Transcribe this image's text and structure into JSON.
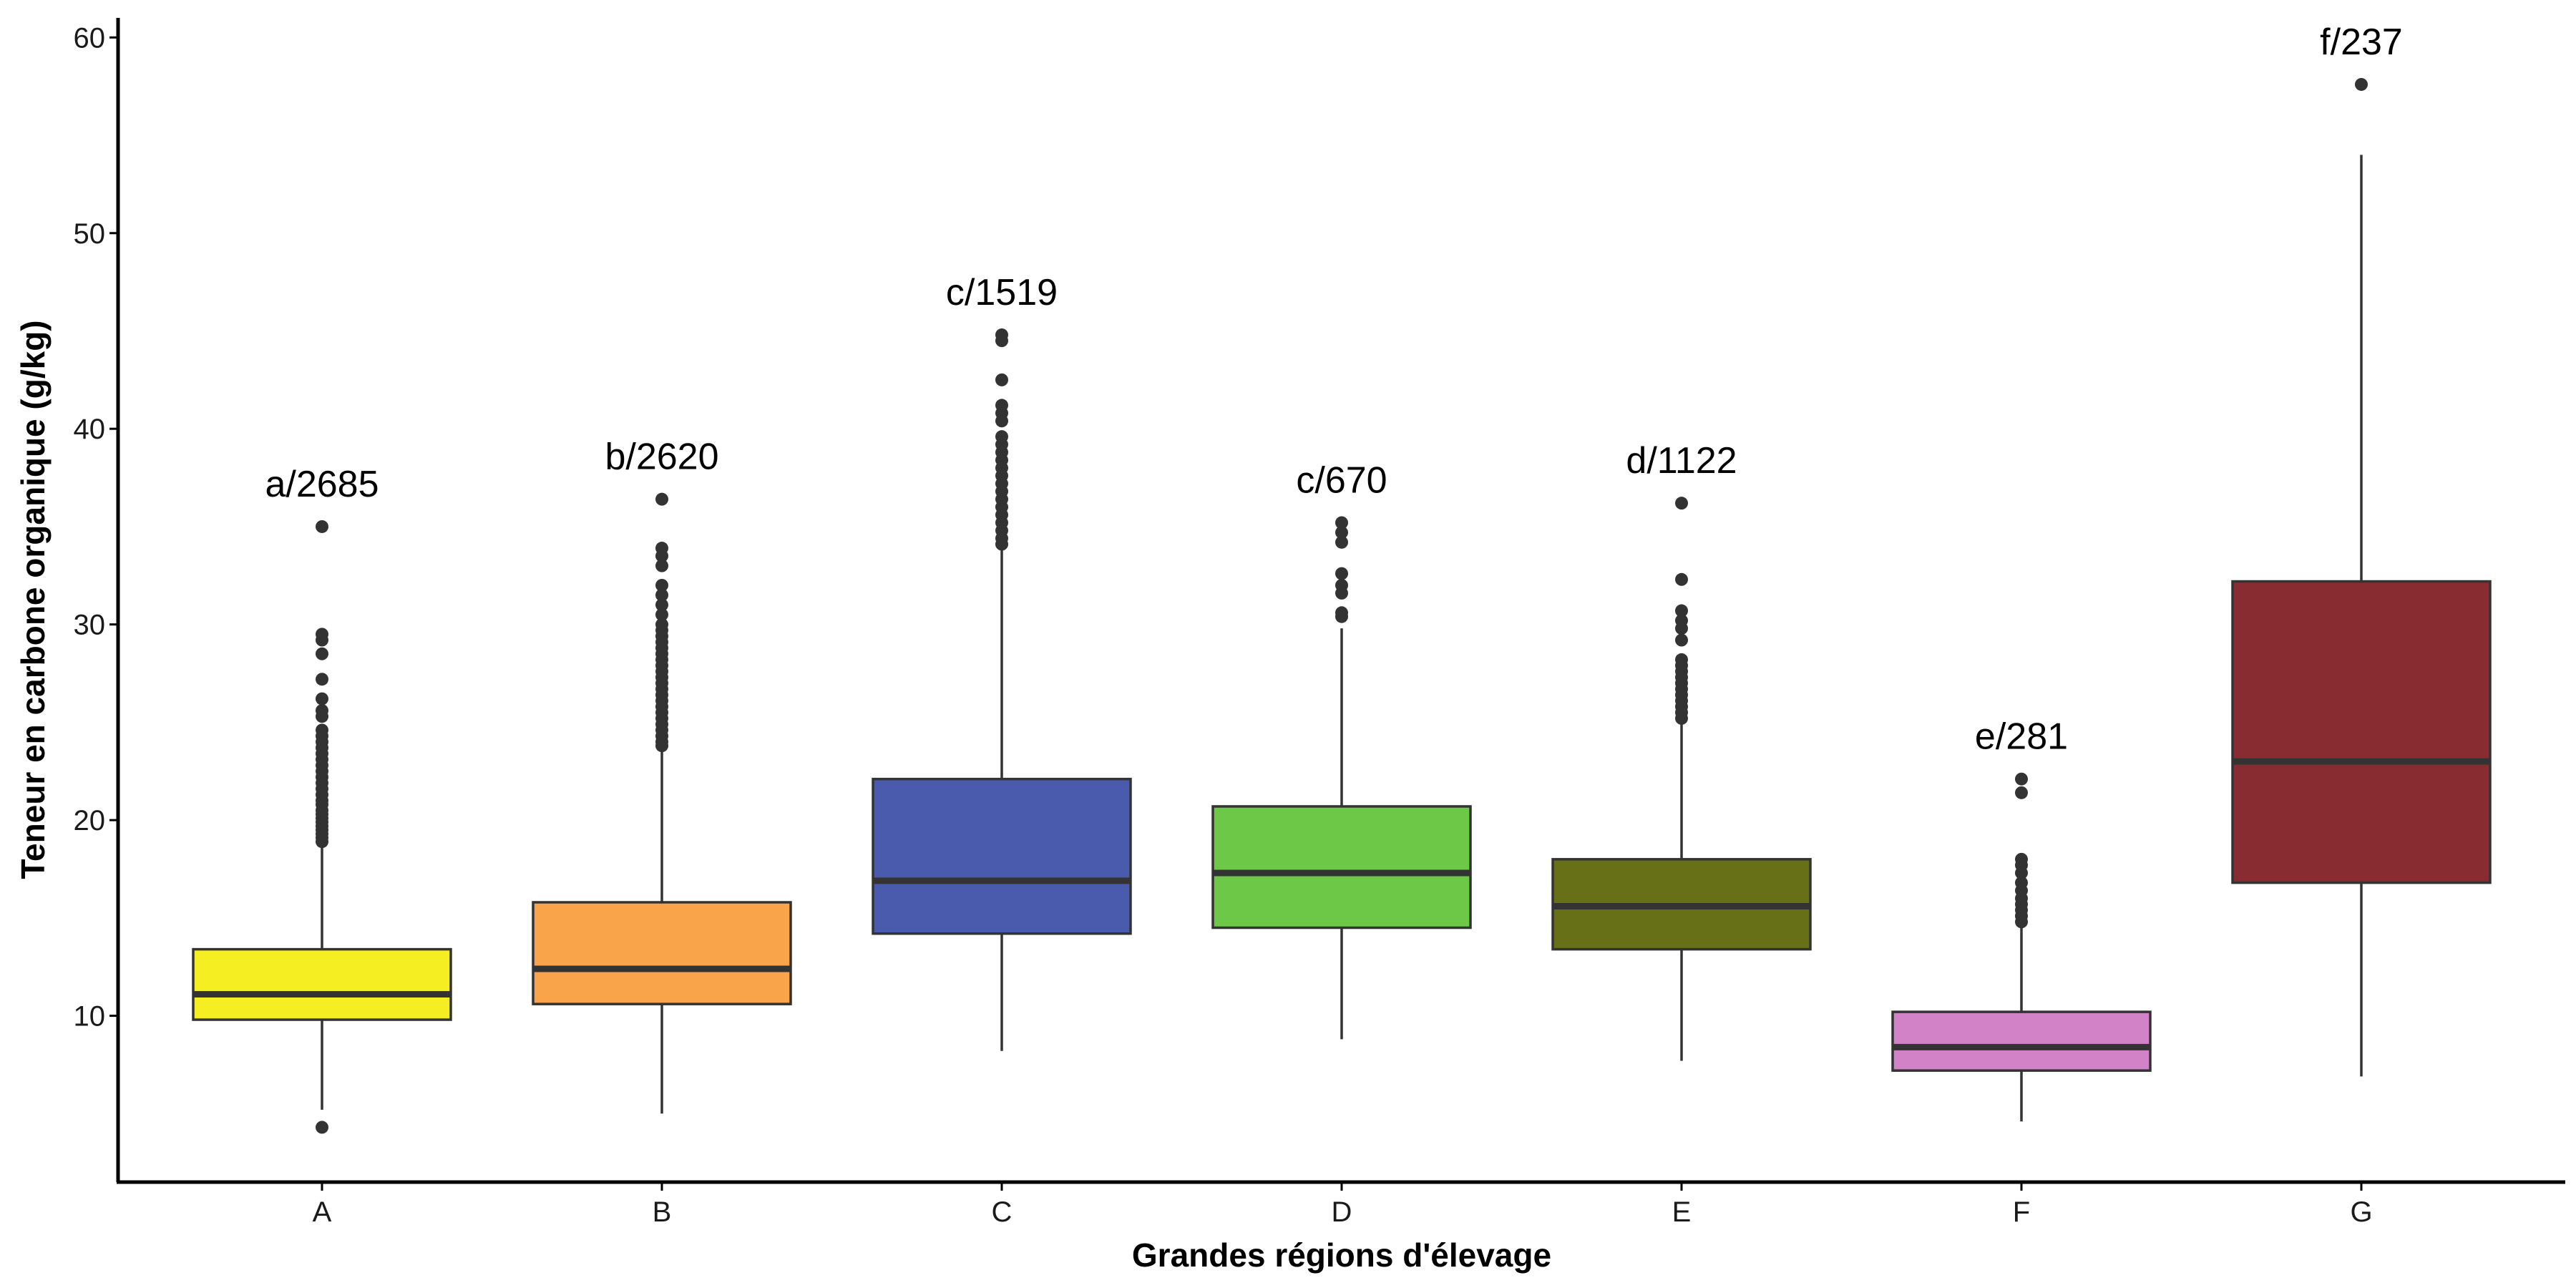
{
  "chart_data": {
    "type": "boxplot",
    "xlabel": "Grandes régions d'élevage",
    "ylabel": "Teneur en carbone organique (g/kg)",
    "ylim": [
      1.5,
      61
    ],
    "yticks": [
      10,
      20,
      30,
      40,
      50,
      60
    ],
    "categories": [
      "A",
      "B",
      "C",
      "D",
      "E",
      "F",
      "G"
    ],
    "boxes": [
      {
        "category": "A",
        "label": "a/2685",
        "color": "#F5EE23",
        "whisker_low": 5.2,
        "q1": 9.8,
        "median": 11.1,
        "q3": 13.4,
        "whisker_high": 18.8,
        "outliers": [
          4.3,
          18.9,
          19.1,
          19.3,
          19.5,
          19.7,
          19.9,
          20.1,
          20.3,
          20.5,
          20.8,
          21.0,
          21.3,
          21.6,
          21.9,
          22.2,
          22.5,
          22.8,
          23.1,
          23.4,
          23.7,
          24.0,
          24.3,
          24.6,
          25.3,
          25.6,
          26.2,
          27.2,
          28.5,
          29.2,
          29.5,
          35.0
        ]
      },
      {
        "category": "B",
        "label": "b/2620",
        "color": "#F9A34B",
        "whisker_low": 5.0,
        "q1": 10.6,
        "median": 12.4,
        "q3": 15.8,
        "whisker_high": 23.7,
        "outliers": [
          23.8,
          24.0,
          24.3,
          24.6,
          24.9,
          25.2,
          25.5,
          25.8,
          26.1,
          26.4,
          26.7,
          27.0,
          27.3,
          27.6,
          27.9,
          28.2,
          28.5,
          28.8,
          29.1,
          29.4,
          29.7,
          30.0,
          30.5,
          31.0,
          31.5,
          32.0,
          33.0,
          33.5,
          33.9,
          36.4
        ]
      },
      {
        "category": "C",
        "label": "c/1519",
        "color": "#4A5BAE",
        "whisker_low": 8.2,
        "q1": 14.2,
        "median": 16.9,
        "q3": 22.1,
        "whisker_high": 33.9,
        "outliers": [
          34.1,
          34.4,
          34.8,
          35.2,
          35.6,
          36.0,
          36.4,
          36.8,
          37.2,
          37.6,
          38.0,
          38.4,
          38.8,
          39.2,
          39.6,
          40.4,
          40.8,
          41.2,
          42.5,
          44.5,
          44.8
        ]
      },
      {
        "category": "D",
        "label": "c/670",
        "color": "#6EC847",
        "whisker_low": 8.8,
        "q1": 14.5,
        "median": 17.3,
        "q3": 20.7,
        "whisker_high": 29.8,
        "outliers": [
          30.4,
          30.6,
          31.6,
          32.0,
          32.6,
          34.2,
          34.7,
          35.2
        ]
      },
      {
        "category": "E",
        "label": "d/1122",
        "color": "#677017",
        "whisker_low": 7.7,
        "q1": 13.4,
        "median": 15.6,
        "q3": 18.0,
        "whisker_high": 25.0,
        "outliers": [
          25.2,
          25.5,
          25.8,
          26.1,
          26.4,
          26.7,
          27.0,
          27.3,
          27.6,
          27.9,
          28.2,
          29.2,
          29.8,
          30.2,
          30.7,
          32.3,
          36.2
        ]
      },
      {
        "category": "F",
        "label": "e/281",
        "color": "#D283C7",
        "whisker_low": 4.6,
        "q1": 7.2,
        "median": 8.4,
        "q3": 10.2,
        "whisker_high": 14.6,
        "outliers": [
          14.8,
          15.1,
          15.4,
          15.7,
          16.0,
          16.4,
          16.8,
          17.3,
          17.7,
          18.0,
          21.4,
          22.1
        ]
      },
      {
        "category": "G",
        "label": "f/237",
        "color": "#882C32",
        "whisker_low": 6.9,
        "q1": 16.8,
        "median": 23.0,
        "q3": 32.2,
        "whisker_high": 54.0,
        "outliers": [
          57.6
        ]
      }
    ]
  }
}
